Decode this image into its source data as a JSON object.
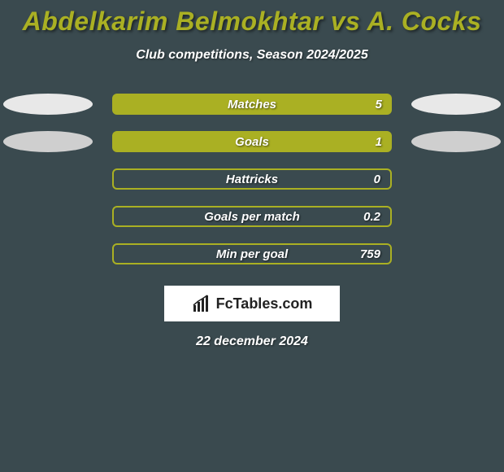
{
  "background_color": "#3a4a4f",
  "title": "Abdelkarim Belmokhtar vs A. Cocks",
  "title_color": "#aab023",
  "title_fontsize": 32,
  "subtitle": "Club competitions, Season 2024/2025",
  "subtitle_fontsize": 16,
  "ellipse_color_light": "#e8e8e8",
  "ellipse_color_dark": "#cfcfcf",
  "bar_fill": "#aab023",
  "bar_border": "#aab023",
  "rows": [
    {
      "label": "Matches",
      "value": "5",
      "fill": true,
      "border": false,
      "left_ellipse": true,
      "right_ellipse": true,
      "ellipse_shade": "light"
    },
    {
      "label": "Goals",
      "value": "1",
      "fill": true,
      "border": false,
      "left_ellipse": true,
      "right_ellipse": true,
      "ellipse_shade": "dark"
    },
    {
      "label": "Hattricks",
      "value": "0",
      "fill": false,
      "border": true,
      "left_ellipse": false,
      "right_ellipse": false,
      "ellipse_shade": "dark"
    },
    {
      "label": "Goals per match",
      "value": "0.2",
      "fill": false,
      "border": true,
      "left_ellipse": false,
      "right_ellipse": false,
      "ellipse_shade": "dark"
    },
    {
      "label": "Min per goal",
      "value": "759",
      "fill": false,
      "border": true,
      "left_ellipse": false,
      "right_ellipse": false,
      "ellipse_shade": "dark"
    }
  ],
  "logo_text": "FcTables.com",
  "logo_icon_color": "#222222",
  "date": "22 december 2024",
  "date_fontsize": 16
}
